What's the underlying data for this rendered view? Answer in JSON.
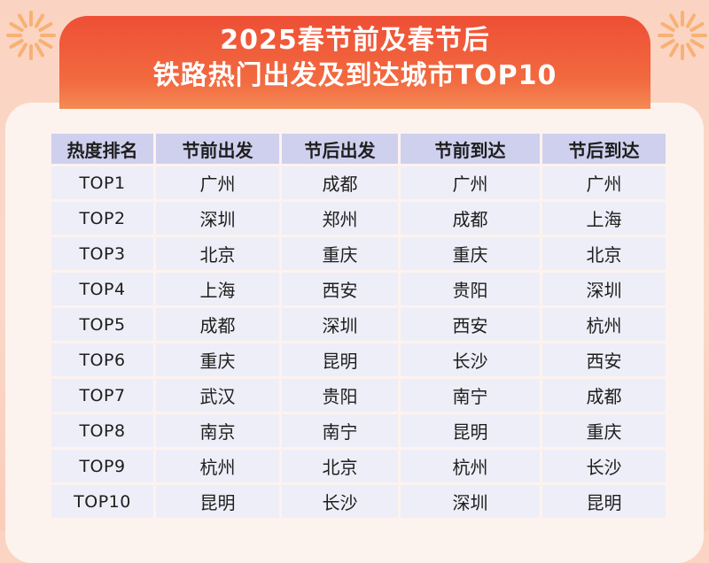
{
  "title": {
    "line1": "2025春节前及春节后",
    "line2": "铁路热门出发及到达城市TOP10"
  },
  "table": {
    "headers": [
      "热度排名",
      "节前出发",
      "节后出发",
      "节前到达",
      "节后到达"
    ],
    "rows": [
      [
        "TOP1",
        "广州",
        "成都",
        "广州",
        "广州"
      ],
      [
        "TOP2",
        "深圳",
        "郑州",
        "成都",
        "上海"
      ],
      [
        "TOP3",
        "北京",
        "重庆",
        "重庆",
        "北京"
      ],
      [
        "TOP4",
        "上海",
        "西安",
        "贵阳",
        "深圳"
      ],
      [
        "TOP5",
        "成都",
        "深圳",
        "西安",
        "杭州"
      ],
      [
        "TOP6",
        "重庆",
        "昆明",
        "长沙",
        "西安"
      ],
      [
        "TOP7",
        "武汉",
        "贵阳",
        "南宁",
        "成都"
      ],
      [
        "TOP8",
        "南京",
        "南宁",
        "昆明",
        "重庆"
      ],
      [
        "TOP9",
        "杭州",
        "北京",
        "杭州",
        "长沙"
      ],
      [
        "TOP10",
        "昆明",
        "长沙",
        "深圳",
        "昆明"
      ]
    ]
  },
  "colors": {
    "banner": "#ee4f35",
    "header_cell": "#cfd0ee",
    "body_cell": "#eeeef8",
    "background": "#fbd3c2"
  }
}
